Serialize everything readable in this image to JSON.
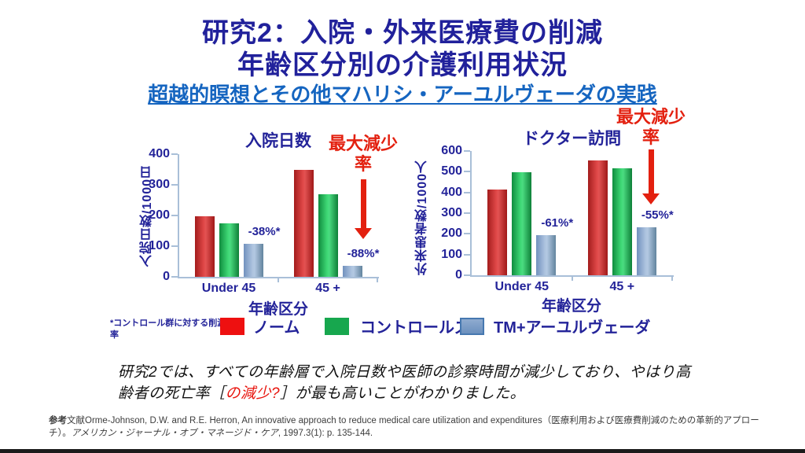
{
  "slide": {
    "title_line1": "研究2：入院・外来医療費の削減",
    "title_line2": "年齢区分別の介護利用状況",
    "subtitle": "超越的瞑想とその他マハリシ・アーユルヴェーダの実践"
  },
  "chart_data": [
    {
      "type": "bar",
      "title": "入院日数",
      "ylabel": "入院日数/1000日",
      "xlabel": "年齢区分",
      "ylim": [
        0,
        400
      ],
      "ytick_step": 100,
      "categories": [
        "Under 45",
        "45 +"
      ],
      "series": [
        {
          "name": "ノーム",
          "color_key": "red",
          "values": [
            197,
            350
          ]
        },
        {
          "name": "コントロールズ",
          "color_key": "green",
          "values": [
            175,
            270
          ]
        },
        {
          "name": "TM+アーユルヴェーダ",
          "color_key": "blue",
          "values": [
            108,
            35
          ]
        }
      ],
      "bar_annotations": [
        "-38%*",
        "-88%*"
      ],
      "annotation": {
        "line1": "最大減少",
        "line2": "率"
      }
    },
    {
      "type": "bar",
      "title": "ドクター訪問",
      "ylabel": "外来患者数/1000人",
      "xlabel": "年齢区分",
      "ylim": [
        0,
        600
      ],
      "ytick_step": 100,
      "categories": [
        "Under 45",
        "45 +"
      ],
      "series": [
        {
          "name": "ノーム",
          "color_key": "red",
          "values": [
            413,
            553
          ]
        },
        {
          "name": "コントロールズ",
          "color_key": "green",
          "values": [
            497,
            515
          ]
        },
        {
          "name": "TM+アーユルヴェーダ",
          "color_key": "blue",
          "values": [
            195,
            232
          ]
        }
      ],
      "bar_annotations": [
        "-61%*",
        "-55%*"
      ],
      "annotation": {
        "line1": "最大減少",
        "line2": "率"
      }
    }
  ],
  "legend": {
    "note": "*コントロール群に対する削減率",
    "items": [
      {
        "label": "ノーム",
        "color_key": "red"
      },
      {
        "label": "コントロールズ",
        "color_key": "green"
      },
      {
        "label": "TM+アーユルヴェーダ",
        "color_key": "blue"
      }
    ]
  },
  "body": {
    "text_before": "研究2では、すべての年齢層で入院日数や医師の診察時間が減少しており、やはり高齢者の死亡率",
    "bracket_open": "［",
    "text_red": "の減少?",
    "bracket_close": "］",
    "text_after": "が最も高いことがわかりました。"
  },
  "reference": {
    "label_bold": "参考",
    "text": "文献Orme-Johnson, D.W. and R.E. Herron, An innovative approach to reduce medical care utilization and expenditures（医療利用および医療費削減のための革新的アプローチ）。",
    "journal": "アメリカン・ジャーナル・オブ・マネージド・ケア",
    "tail": ", 1997.3(1): p. 135-144."
  },
  "colors": {
    "title_navy": "#21219B",
    "subtitle_blue": "#1565C0",
    "chart_navy": "#232399",
    "annotation_red": "#E3200F",
    "bar_red": "#CC2222",
    "bar_green": "#17A74E",
    "bar_blue": "#6B90BE",
    "axis_gray_blue": "#A9BFD8"
  }
}
